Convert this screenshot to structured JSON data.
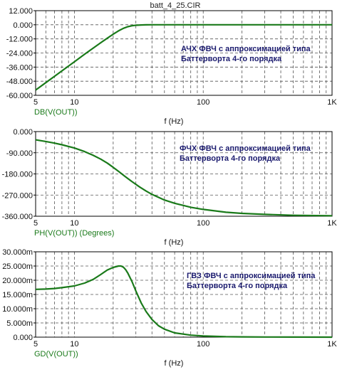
{
  "window_title": "batt_4_25.CIR",
  "colors": {
    "trace": "#1a7a1a",
    "axis_label": "#1a7a1a",
    "annotation": "#1a1a6e",
    "frame": "#000000",
    "grid": "#555555"
  },
  "chart_data": [
    {
      "type": "line",
      "trace_label": "DB(V(OUT))",
      "xlabel": "f (Hz)",
      "x_scale": "log",
      "xlim": [
        5,
        1000
      ],
      "x_ticks": [
        5,
        10,
        100,
        1000
      ],
      "x_tick_labels": [
        "5",
        "10",
        "100",
        "1K"
      ],
      "ylim": [
        -60,
        12
      ],
      "y_ticks": [
        12,
        0,
        -12,
        -24,
        -36,
        -48,
        -60
      ],
      "y_tick_labels": [
        "12.000",
        "0.000",
        "-12.000",
        "-24.000",
        "-36.000",
        "-48.000",
        "-60.000"
      ],
      "grid": true,
      "annotation": [
        "АЧХ ФВЧ с аппроксимацией типа",
        "Баттерворта 4-го порядка"
      ],
      "series": [
        {
          "x": [
            5,
            6,
            7,
            8,
            10,
            12,
            14,
            16,
            18,
            20,
            22,
            24,
            26,
            28,
            30,
            33,
            36,
            40,
            50,
            70,
            100,
            200,
            500,
            1000
          ],
          "y": [
            -55.5,
            -49.2,
            -43.9,
            -39.2,
            -31.5,
            -25.1,
            -19.8,
            -15.3,
            -11.4,
            -8.0,
            -5.2,
            -3.0,
            -1.6,
            -0.8,
            -0.4,
            -0.15,
            -0.05,
            0,
            0,
            0,
            0,
            0,
            0,
            0
          ]
        }
      ]
    },
    {
      "type": "line",
      "trace_label": "PH(V(OUT)) (Degrees)",
      "xlabel": "f (Hz)",
      "x_scale": "log",
      "xlim": [
        5,
        1000
      ],
      "x_ticks": [
        5,
        10,
        100,
        1000
      ],
      "x_tick_labels": [
        "5",
        "10",
        "100",
        "1K"
      ],
      "ylim": [
        -360,
        0
      ],
      "y_ticks": [
        0,
        -90,
        -180,
        -270,
        -360
      ],
      "y_tick_labels": [
        "0.000",
        "-90.000",
        "-180.000",
        "-270.000",
        "-360.000"
      ],
      "grid": true,
      "annotation": [
        "ФЧХ ФВЧ с аппроксимацией типа",
        "Баттерворта 4-го порядка"
      ],
      "series": [
        {
          "x": [
            5,
            6,
            7,
            8,
            10,
            12,
            14,
            16,
            18,
            20,
            22,
            25,
            28,
            32,
            36,
            40,
            50,
            60,
            80,
            100,
            150,
            200,
            300,
            500,
            1000
          ],
          "y": [
            -35,
            -42,
            -49,
            -56,
            -70,
            -85,
            -101,
            -117,
            -134,
            -152,
            -169,
            -193,
            -213,
            -235,
            -253,
            -267,
            -291,
            -305,
            -322,
            -331,
            -343,
            -348,
            -352,
            -356,
            -358
          ]
        }
      ]
    },
    {
      "type": "line",
      "trace_label": "GD(V(OUT))",
      "xlabel": "f (Hz)",
      "x_scale": "log",
      "xlim": [
        5,
        1000
      ],
      "x_ticks": [
        5,
        10,
        100,
        1000
      ],
      "x_tick_labels": [
        "5",
        "10",
        "100",
        "1K"
      ],
      "ylim": [
        0,
        0.03
      ],
      "y_ticks": [
        0.03,
        0.025,
        0.02,
        0.015,
        0.01,
        0.005,
        0
      ],
      "y_tick_labels": [
        "30.000m",
        "25.000m",
        "20.000m",
        "15.000m",
        "10.000m",
        "5.000m",
        "0.000"
      ],
      "grid": true,
      "annotation": [
        "ГВЗ ФВЧ с аппроксимацией типа",
        "Баттерворта 4-го порядка"
      ],
      "series": [
        {
          "x": [
            5,
            6,
            7,
            8,
            10,
            12,
            14,
            16,
            18,
            20,
            22,
            23,
            24,
            25,
            26,
            28,
            30,
            33,
            36,
            40,
            45,
            50,
            60,
            80,
            100,
            150,
            200,
            300,
            500,
            1000
          ],
          "y": [
            0.0168,
            0.0169,
            0.0171,
            0.0174,
            0.018,
            0.019,
            0.0203,
            0.022,
            0.0236,
            0.0245,
            0.025,
            0.025,
            0.0246,
            0.0237,
            0.0225,
            0.0195,
            0.0162,
            0.012,
            0.009,
            0.0062,
            0.004,
            0.0028,
            0.0015,
            0.0007,
            0.0004,
            0.00015,
            0.0001,
            5e-05,
            2e-05,
            1e-05
          ]
        }
      ]
    }
  ]
}
